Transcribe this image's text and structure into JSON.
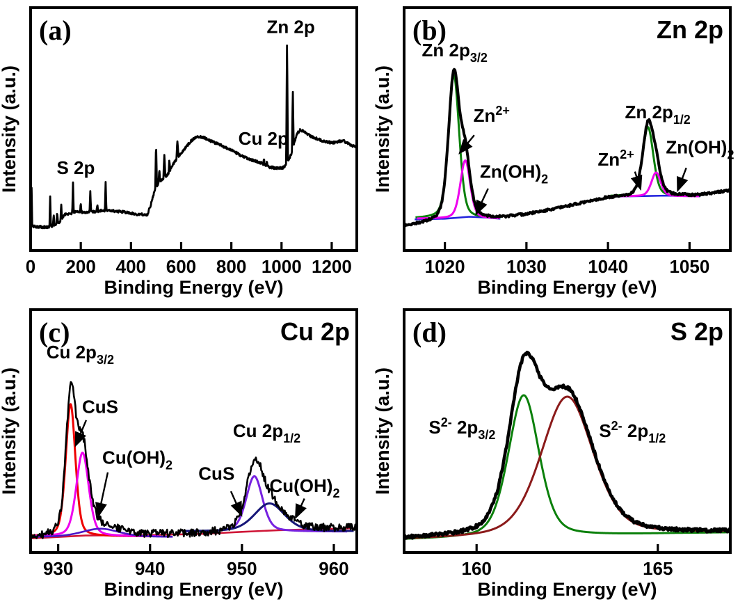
{
  "shared": {
    "xlabel": "Binding Energy (eV)",
    "ylabel": "Intensity (a.u.)"
  },
  "colors": {
    "black": "#000000",
    "green": "#0b800b",
    "magenta": "#ee00ee",
    "blue": "#2222dd",
    "red": "#ee0000",
    "violet": "#7722e0",
    "navy": "#161678",
    "crimson": "#cf1637",
    "bump": "#4a17c8",
    "darkred": "#8b1a1a"
  },
  "chart_data": [
    {
      "id": "a",
      "type": "line",
      "panel_label": "(a)",
      "corner_title": "",
      "xlabel": "Binding Energy (eV)",
      "ylabel": "Intensity (a.u.)",
      "xlim": [
        0,
        1300
      ],
      "xticks": [
        0,
        200,
        400,
        600,
        800,
        1000,
        1200
      ],
      "grid": false,
      "survey": {
        "color": "black",
        "stroke": 2.8,
        "noise": 0.005,
        "backbone": [
          [
            0,
            0.112
          ],
          [
            5,
            0.1
          ],
          [
            75,
            0.095
          ],
          [
            98,
            0.106
          ],
          [
            112,
            0.112
          ],
          [
            135,
            0.148
          ],
          [
            160,
            0.153
          ],
          [
            175,
            0.158
          ],
          [
            235,
            0.158
          ],
          [
            300,
            0.166
          ],
          [
            360,
            0.16
          ],
          [
            420,
            0.15
          ],
          [
            465,
            0.147
          ],
          [
            478,
            0.185
          ],
          [
            495,
            0.25
          ],
          [
            505,
            0.27
          ],
          [
            520,
            0.29
          ],
          [
            545,
            0.31
          ],
          [
            565,
            0.35
          ],
          [
            590,
            0.39
          ],
          [
            615,
            0.42
          ],
          [
            640,
            0.452
          ],
          [
            665,
            0.47
          ],
          [
            690,
            0.466
          ],
          [
            720,
            0.45
          ],
          [
            760,
            0.433
          ],
          [
            800,
            0.413
          ],
          [
            840,
            0.39
          ],
          [
            880,
            0.373
          ],
          [
            920,
            0.36
          ],
          [
            950,
            0.344
          ],
          [
            980,
            0.338
          ],
          [
            1005,
            0.341
          ],
          [
            1015,
            0.348
          ],
          [
            1030,
            0.378
          ],
          [
            1040,
            0.398
          ],
          [
            1050,
            0.438
          ],
          [
            1060,
            0.478
          ],
          [
            1075,
            0.497
          ],
          [
            1090,
            0.49
          ],
          [
            1120,
            0.468
          ],
          [
            1160,
            0.453
          ],
          [
            1200,
            0.443
          ],
          [
            1245,
            0.452
          ],
          [
            1300,
            0.422
          ]
        ],
        "spikes": [
          [
            4,
            0.16,
            2.5
          ],
          [
            78,
            0.125,
            3
          ],
          [
            92,
            0.05,
            3
          ],
          [
            106,
            0.05,
            3
          ],
          [
            122,
            0.062,
            3
          ],
          [
            169,
            0.122,
            3
          ],
          [
            200,
            0.04,
            3
          ],
          [
            238,
            0.088,
            3
          ],
          [
            266,
            0.028,
            3
          ],
          [
            299,
            0.118,
            3
          ],
          [
            500,
            0.185,
            3.5
          ],
          [
            513,
            0.055,
            3
          ],
          [
            533,
            0.098,
            4
          ],
          [
            553,
            0.048,
            3
          ],
          [
            585,
            0.072,
            4
          ],
          [
            930,
            0.022,
            3
          ],
          [
            942,
            0.016,
            3
          ],
          [
            1022,
            0.515,
            3.5
          ],
          [
            1045,
            0.245,
            3.5
          ]
        ]
      },
      "annotations": [
        {
          "parts": [
            {
              "t": "S 2p"
            }
          ],
          "x": 180,
          "y": 0.315,
          "anchor": "middle"
        },
        {
          "parts": [
            {
              "t": "Cu 2p"
            }
          ],
          "x": 928,
          "y": 0.435,
          "anchor": "middle"
        },
        {
          "parts": [
            {
              "t": "Zn 2p"
            }
          ],
          "x": 1037,
          "y": 0.895,
          "anchor": "middle"
        }
      ]
    },
    {
      "id": "b",
      "type": "line",
      "panel_label": "(b)",
      "corner_title": "Zn 2p",
      "xlabel": "Binding Energy (eV)",
      "ylabel": "Intensity (a.u.)",
      "xlim": [
        1015,
        1055
      ],
      "xticks": [
        1020,
        1030,
        1040,
        1050
      ],
      "grid": false,
      "background": [
        [
          1015,
          0.1
        ],
        [
          1018,
          0.112
        ],
        [
          1021,
          0.124
        ],
        [
          1024,
          0.13
        ],
        [
          1027,
          0.134
        ],
        [
          1030,
          0.148
        ],
        [
          1034,
          0.174
        ],
        [
          1038,
          0.204
        ],
        [
          1040,
          0.217
        ],
        [
          1043,
          0.221
        ],
        [
          1046,
          0.224
        ],
        [
          1049,
          0.227
        ],
        [
          1051,
          0.227
        ],
        [
          1053,
          0.237
        ],
        [
          1055,
          0.248
        ]
      ],
      "baselines": [
        {
          "color": "blue",
          "stroke": 2.6,
          "points": [
            [
              1016.3,
              0.128
            ],
            [
              1020,
              0.131
            ],
            [
              1023,
              0.139
            ],
            [
              1025,
              0.136
            ],
            [
              1026.8,
              0.131
            ]
          ],
          "name": "Zn 2p3/2 baseline"
        },
        {
          "color": "blue",
          "stroke": 2.6,
          "points": [
            [
              1040.2,
              0.222
            ],
            [
              1044,
              0.224
            ],
            [
              1047,
              0.226
            ],
            [
              1051.3,
              0.223
            ]
          ],
          "name": "Zn 2p1/2 baseline"
        }
      ],
      "components": [
        {
          "name": "Zn2+ (2p3/2)",
          "color": "green",
          "stroke": 3,
          "center": 1021.1,
          "amp": 0.59,
          "hw": 0.78,
          "base": 0.131,
          "range": [
            1016.4,
            1026.8
          ]
        },
        {
          "name": "Zn(OH)2 (2p3/2)",
          "color": "magenta",
          "stroke": 3,
          "center": 1022.5,
          "amp": 0.24,
          "hw": 0.72,
          "base": 0.131,
          "range": [
            1016.6,
            1026.8
          ]
        },
        {
          "name": "Zn2+ (2p1/2)",
          "color": "green",
          "stroke": 3,
          "center": 1044.9,
          "amp": 0.285,
          "hw": 0.78,
          "base": 0.223,
          "range": [
            1040.3,
            1051.2
          ]
        },
        {
          "name": "Zn(OH)2 (2p1/2)",
          "color": "magenta",
          "stroke": 3,
          "center": 1045.9,
          "amp": 0.098,
          "hw": 0.68,
          "base": 0.223,
          "range": [
            1040.5,
            1051.2
          ]
        }
      ],
      "envelope": {
        "color": "black",
        "stroke": 4,
        "noise": 0.0045
      },
      "annotations": [
        {
          "parts": [
            {
              "t": "Zn 2p"
            },
            {
              "t": "3/2",
              "pos": "sub"
            }
          ],
          "x": 1021.2,
          "y": 0.8,
          "anchor": "middle"
        },
        {
          "parts": [
            {
              "t": "Zn"
            },
            {
              "t": "2+",
              "pos": "sup"
            }
          ],
          "x": 1023.5,
          "y": 0.53,
          "anchor": "start",
          "arrow": [
            1023.6,
            0.475,
            1021.9,
            0.405
          ]
        },
        {
          "parts": [
            {
              "t": "Zn(OH)"
            },
            {
              "t": "2",
              "pos": "sub"
            }
          ],
          "x": 1024.3,
          "y": 0.3,
          "anchor": "start",
          "arrow": [
            1025.3,
            0.255,
            1023.9,
            0.155
          ]
        },
        {
          "parts": [
            {
              "t": "Zn 2p"
            },
            {
              "t": "1/2",
              "pos": "sub"
            }
          ],
          "x": 1046.1,
          "y": 0.545,
          "anchor": "middle"
        },
        {
          "parts": [
            {
              "t": "Zn"
            },
            {
              "t": "2+",
              "pos": "sup"
            }
          ],
          "x": 1043.2,
          "y": 0.35,
          "anchor": "end",
          "arrow": [
            1043.3,
            0.325,
            1043.95,
            0.258
          ]
        },
        {
          "parts": [
            {
              "t": "Zn(OH)"
            },
            {
              "t": "2",
              "pos": "sub"
            }
          ],
          "x": 1047.1,
          "y": 0.4,
          "anchor": "start",
          "arrow": [
            1049.6,
            0.34,
            1048.6,
            0.252
          ]
        }
      ]
    },
    {
      "id": "c",
      "type": "line",
      "panel_label": "(c)",
      "corner_title": "Cu 2p",
      "xlabel": "Binding Energy (eV)",
      "ylabel": "Intensity (a.u.)",
      "xlim": [
        927,
        962.5
      ],
      "xticks": [
        930,
        940,
        950,
        960
      ],
      "grid": false,
      "background": [
        [
          927,
          0.058
        ],
        [
          933,
          0.07
        ],
        [
          940,
          0.072
        ],
        [
          946,
          0.077
        ],
        [
          950,
          0.085
        ],
        [
          954,
          0.092
        ],
        [
          958,
          0.096
        ],
        [
          962.5,
          0.1
        ]
      ],
      "background_line": {
        "color": "crimson",
        "stroke": 2.6
      },
      "baselines": [],
      "components": [
        {
          "name": "CuS (2p3/2)",
          "color": "red",
          "stroke": 3,
          "center": 931.35,
          "amp": 0.545,
          "hw": 0.62,
          "base": 0.066,
          "range": [
            927.2,
            940
          ]
        },
        {
          "name": "Cu(OH)2 (2p3/2)",
          "color": "magenta",
          "stroke": 3,
          "center": 932.65,
          "amp": 0.345,
          "hw": 0.8,
          "base": 0.066,
          "range": [
            927.5,
            941
          ]
        },
        {
          "name": "broad shoulder (2p3/2)",
          "color": "bump",
          "stroke": 2.6,
          "center": 934.6,
          "amp": 0.034,
          "hw": 2.4,
          "base": 0.064,
          "range": [
            927.2,
            942.5
          ]
        },
        {
          "name": "CuS (2p1/2)",
          "color": "violet",
          "stroke": 3,
          "center": 951.35,
          "amp": 0.228,
          "hw": 1.05,
          "base": 0.086,
          "range": [
            943.5,
            961.5
          ]
        },
        {
          "name": "Cu(OH)2 (2p1/2)",
          "color": "navy",
          "stroke": 3,
          "center": 953.0,
          "amp": 0.115,
          "hw": 1.95,
          "base": 0.087,
          "range": [
            943.5,
            962.2
          ]
        }
      ],
      "envelope": {
        "color": "black",
        "stroke": 2.6,
        "noise": 0.016
      },
      "annotations": [
        {
          "parts": [
            {
              "t": "Cu 2p"
            },
            {
              "t": "3/2",
              "pos": "sub"
            }
          ],
          "x": 932.4,
          "y": 0.8,
          "anchor": "middle"
        },
        {
          "parts": [
            {
              "t": "CuS"
            }
          ],
          "x": 932.6,
          "y": 0.575,
          "anchor": "start",
          "arrow": [
            933.05,
            0.545,
            931.95,
            0.445
          ]
        },
        {
          "parts": [
            {
              "t": "Cu(OH)"
            },
            {
              "t": "2",
              "pos": "sub"
            }
          ],
          "x": 934.8,
          "y": 0.365,
          "anchor": "start",
          "arrow": [
            935.4,
            0.33,
            934.4,
            0.155
          ]
        },
        {
          "parts": [
            {
              "t": "Cu 2p"
            },
            {
              "t": "1/2",
              "pos": "sub"
            }
          ],
          "x": 952.7,
          "y": 0.475,
          "anchor": "middle"
        },
        {
          "parts": [
            {
              "t": "CuS"
            }
          ],
          "x": 949.2,
          "y": 0.3,
          "anchor": "end",
          "arrow": [
            948.8,
            0.252,
            949.9,
            0.158
          ]
        },
        {
          "parts": [
            {
              "t": "Cu(OH)"
            },
            {
              "t": "2",
              "pos": "sub"
            }
          ],
          "x": 953.0,
          "y": 0.25,
          "anchor": "start",
          "arrow": [
            956.8,
            0.222,
            955.9,
            0.148
          ]
        }
      ]
    },
    {
      "id": "d",
      "type": "line",
      "panel_label": "(d)",
      "corner_title": "S 2p",
      "xlabel": "Binding Energy (eV)",
      "ylabel": "Intensity (a.u.)",
      "xlim": [
        158,
        167
      ],
      "xticks": [
        160,
        165
      ],
      "grid": false,
      "background": [
        [
          158,
          0.052
        ],
        [
          160,
          0.058
        ],
        [
          162,
          0.065
        ],
        [
          164,
          0.072
        ],
        [
          165.5,
          0.078
        ],
        [
          167,
          0.082
        ]
      ],
      "baselines": [],
      "components": [
        {
          "name": "S2- 2p3/2",
          "color": "green",
          "stroke": 3,
          "center": 161.3,
          "amp": 0.585,
          "hw": 0.5,
          "base": "bg",
          "range": [
            158,
            167
          ]
        },
        {
          "name": "S2- 2p1/2",
          "color": "darkred",
          "stroke": 3,
          "center": 162.5,
          "amp": 0.575,
          "hw": 0.85,
          "base": "bg",
          "range": [
            158,
            167
          ]
        }
      ],
      "envelope": {
        "color": "black",
        "stroke": 4.6,
        "noise": 0.007
      },
      "annotations": [
        {
          "parts": [
            {
              "t": "S"
            },
            {
              "t": "2-",
              "pos": "sup"
            },
            {
              "t": " 2p"
            },
            {
              "t": "3/2",
              "pos": "sub"
            }
          ],
          "x": 159.6,
          "y": 0.49,
          "anchor": "middle"
        },
        {
          "parts": [
            {
              "t": "S"
            },
            {
              "t": "2-",
              "pos": "sup"
            },
            {
              "t": " 2p"
            },
            {
              "t": "1/2",
              "pos": "sub"
            }
          ],
          "x": 164.3,
          "y": 0.475,
          "anchor": "middle"
        }
      ]
    }
  ]
}
